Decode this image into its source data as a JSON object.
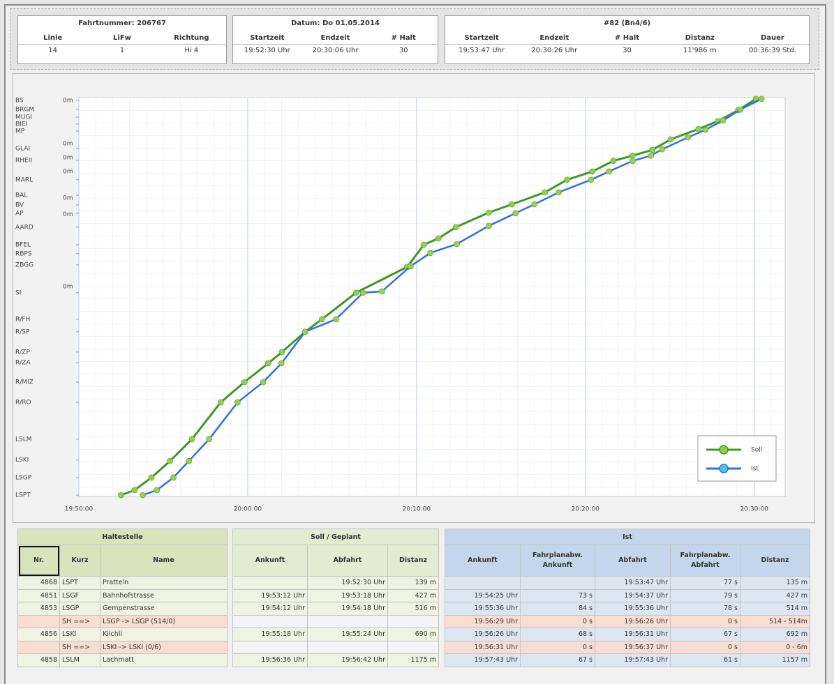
{
  "header": [
    {
      "title": "Fahrtnummer: 206767",
      "columns": [
        "Linie",
        "LiFw",
        "Richtung"
      ],
      "values": [
        "14",
        "1",
        "Hi 4"
      ]
    },
    {
      "title": "Datum: Do 01.05.2014",
      "columns": [
        "Startzeit",
        "Endzeit",
        "# Halt"
      ],
      "values": [
        "19:52:30 Uhr",
        "20:30:06 Uhr",
        "30"
      ]
    },
    {
      "title": "#82 (Bn4/6)",
      "columns": [
        "Startzeit",
        "Endzeit",
        "# Halt",
        "Distanz",
        "Dauer"
      ],
      "values": [
        "19:53:47 Uhr",
        "20:30:26 Uhr",
        "30",
        "11'986 m",
        "00:36:39 Std."
      ]
    }
  ],
  "chart_data": {
    "type": "line",
    "xlim": [
      "19:50:00",
      "20:31:50"
    ],
    "xticks": [
      "19:50:00",
      "20:00:00",
      "20:10:00",
      "20:20:00",
      "20:30:00"
    ],
    "ylim": [
      -40,
      12000
    ],
    "yticks": [
      {
        "value": 11920,
        "label": "BS"
      },
      {
        "value": 11640,
        "label": "BRGM"
      },
      {
        "value": 11410,
        "label": "MUGI"
      },
      {
        "value": 11200,
        "label": "BIEI"
      },
      {
        "value": 10990,
        "label": "MP"
      },
      {
        "value": 10460,
        "label": "GLAI"
      },
      {
        "value": 10110,
        "label": "RHEII"
      },
      {
        "value": 9520,
        "label": "MARL"
      },
      {
        "value": 9050,
        "label": "BAL"
      },
      {
        "value": 8760,
        "label": "BV"
      },
      {
        "value": 8510,
        "label": "AP"
      },
      {
        "value": 8090,
        "label": "AARD"
      },
      {
        "value": 7560,
        "label": "BFEL"
      },
      {
        "value": 7290,
        "label": "RBPS"
      },
      {
        "value": 6950,
        "label": "ZBGG"
      },
      {
        "value": 6110,
        "label": "SI"
      },
      {
        "value": 5310,
        "label": "R/FH"
      },
      {
        "value": 4930,
        "label": "R/SP"
      },
      {
        "value": 4320,
        "label": "R/ZP"
      },
      {
        "value": 4000,
        "label": "R/ZA"
      },
      {
        "value": 3410,
        "label": "R/MIZ"
      },
      {
        "value": 2800,
        "label": "R/RO"
      },
      {
        "value": 1690,
        "label": "LSLM"
      },
      {
        "value": 1060,
        "label": "LSKI"
      },
      {
        "value": 530,
        "label": "LSGP"
      },
      {
        "value": 0,
        "label": "LSPT"
      }
    ],
    "annotations": [
      {
        "text": "0m",
        "y": 11920
      },
      {
        "text": "0m",
        "y": 10610
      },
      {
        "text": "0m",
        "y": 10190
      },
      {
        "text": "0m",
        "y": 9770
      },
      {
        "text": "0m",
        "y": 8970
      },
      {
        "text": "0m",
        "y": 8470
      },
      {
        "text": "0m",
        "y": 6300
      }
    ],
    "grid": true,
    "legend": "lower right",
    "series": [
      {
        "name": "Soll",
        "color": "#3c9a22",
        "marker_color": "#8fd14f",
        "x": [
          "19:52:30",
          "19:53:18",
          "19:54:18",
          "19:55:24",
          "19:56:42",
          "19:58:24",
          "19:59:48",
          "20:01:13",
          "20:02:02",
          "20:03:24",
          "20:04:24",
          "20:06:25",
          "20:09:27",
          "20:10:26",
          "20:11:18",
          "20:12:20",
          "20:14:17",
          "20:15:39",
          "20:17:36",
          "20:18:55",
          "20:20:25",
          "20:21:39",
          "20:22:48",
          "20:23:58",
          "20:25:03",
          "20:26:42",
          "20:27:51",
          "20:29:03",
          "20:30:06"
        ],
        "values": [
          0,
          150,
          530,
          1030,
          1690,
          2800,
          3410,
          3980,
          4320,
          4930,
          5310,
          6110,
          6890,
          7560,
          7750,
          8090,
          8530,
          8780,
          9140,
          9520,
          9770,
          10090,
          10250,
          10420,
          10740,
          11050,
          11290,
          11620,
          11960
        ]
      },
      {
        "name": "Ist",
        "color": "#2f6fe8",
        "marker_color": "#9ad24a",
        "legend_marker_color": "#4cc3f0",
        "x": [
          "19:53:47",
          "19:54:37",
          "19:55:36",
          "19:56:31",
          "19:57:43",
          "19:59:24",
          "20:00:55",
          "20:02:00",
          "20:03:24",
          "20:05:14",
          "20:06:50",
          "20:07:57",
          "20:09:39",
          "20:10:49",
          "20:12:23",
          "20:14:17",
          "20:15:52",
          "20:16:59",
          "20:18:25",
          "20:20:20",
          "20:21:24",
          "20:22:48",
          "20:23:53",
          "20:24:33",
          "20:26:05",
          "20:27:07",
          "20:28:09",
          "20:29:11",
          "20:30:26"
        ],
        "values": [
          0,
          150,
          530,
          1030,
          1690,
          2800,
          3410,
          3980,
          4930,
          5310,
          6110,
          6150,
          6910,
          7310,
          7580,
          8130,
          8510,
          8780,
          9140,
          9520,
          9770,
          10090,
          10250,
          10440,
          10800,
          11030,
          11310,
          11640,
          11960
        ]
      }
    ]
  },
  "table": {
    "groups": [
      {
        "title": "Haltestelle",
        "header_color": "#d8e4bc",
        "columns": [
          "Nr.",
          "Kurz",
          "Name"
        ],
        "rows": [
          [
            "4868",
            "LSPT",
            "Pratteln"
          ],
          [
            "4851",
            "LSGF",
            "Bahnhofstrasse"
          ],
          [
            "4853",
            "LSGP",
            "Gempenstrasse"
          ],
          [
            "",
            "SH ==>",
            "LSGP -> LSGP (514/0)"
          ],
          [
            "4856",
            "LSKI",
            "Kilchli"
          ],
          [
            "",
            "SH ==>",
            "LSKI -> LSKI (0/6)"
          ],
          [
            "4858",
            "LSLM",
            "Lachmatt"
          ]
        ],
        "row_colors": [
          "#eef3e2",
          "#eef3e2",
          "#eef3e2",
          "#f9ddd3",
          "#eef3e2",
          "#f9ddd3",
          "#eef3e2"
        ]
      },
      {
        "title": "Soll / Geplant",
        "header_color": "#e2ecd0",
        "columns": [
          "Ankunft",
          "Abfahrt",
          "Distanz"
        ],
        "rows": [
          [
            "",
            "19:52:30 Uhr",
            "139 m"
          ],
          [
            "19:53:12 Uhr",
            "19:53:18 Uhr",
            "427 m"
          ],
          [
            "19:54:12 Uhr",
            "19:54:18 Uhr",
            "516 m"
          ],
          [
            "",
            "",
            ""
          ],
          [
            "19:55:18 Uhr",
            "19:55:24 Uhr",
            "690 m"
          ],
          [
            "",
            "",
            ""
          ],
          [
            "19:56:36 Uhr",
            "19:56:42 Uhr",
            "1175 m"
          ]
        ],
        "row_colors": [
          "#eef3e2",
          "#eef3e2",
          "#eef3e2",
          "#f4f4f4",
          "#eef3e2",
          "#f4f4f4",
          "#eef3e2"
        ]
      },
      {
        "title": "Ist",
        "header_color": "#c5d6ec",
        "columns": [
          "Ankunft",
          "Fahrplanabw. Ankunft",
          "Abfahrt",
          "Fahrplanabw. Abfahrt",
          "Distanz"
        ],
        "rows": [
          [
            "",
            "",
            "19:53:47 Uhr",
            "77 s",
            "135 m"
          ],
          [
            "19:54:25 Uhr",
            "73 s",
            "19:54:37 Uhr",
            "79 s",
            "427 m"
          ],
          [
            "19:55:36 Uhr",
            "84 s",
            "19:55:36 Uhr",
            "78 s",
            "514 m"
          ],
          [
            "19:56:29 Uhr",
            "0 s",
            "19:56:26 Uhr",
            "0 s",
            "514 - 514m"
          ],
          [
            "19:56:26 Uhr",
            "68 s",
            "19:56:31 Uhr",
            "67 s",
            "692 m"
          ],
          [
            "19:56:31 Uhr",
            "0 s",
            "19:56:37 Uhr",
            "0 s",
            "0 - 6m"
          ],
          [
            "19:57:43 Uhr",
            "67 s",
            "19:57:43 Uhr",
            "61 s",
            "1157 m"
          ]
        ],
        "row_colors": [
          "#dce6f2",
          "#dce6f2",
          "#dce6f2",
          "#f9ddd3",
          "#dce6f2",
          "#f9ddd3",
          "#dce6f2"
        ]
      }
    ]
  }
}
